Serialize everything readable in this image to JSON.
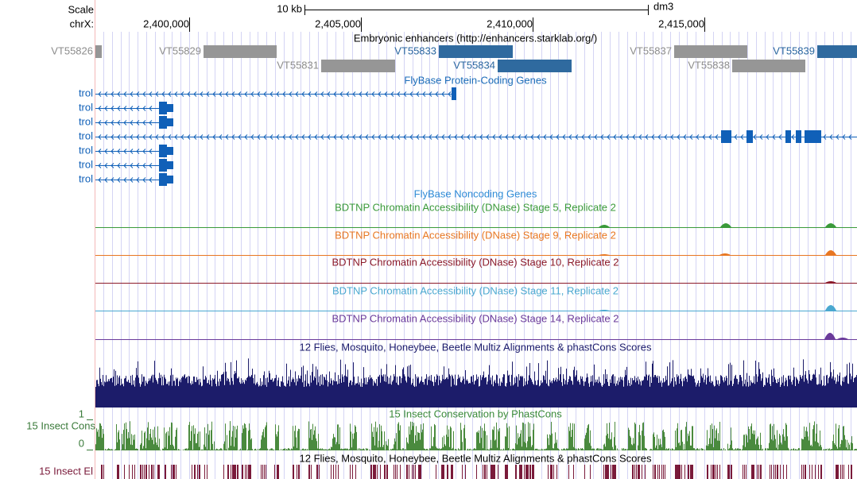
{
  "header": {
    "scale_label": "Scale",
    "chrom_label": "chrX:",
    "scale_bar_label": "10 kb",
    "assembly": "dm3",
    "positions": [
      "2,400,000",
      "2,405,000",
      "2,410,000",
      "2,415,000"
    ]
  },
  "enhancers": {
    "title": "Embryonic enhancers (http://enhancers.starklab.org/)",
    "features": [
      "VT55826",
      "VT55829",
      "VT55833",
      "VT55837",
      "VT55839",
      "VT55831",
      "VT55834",
      "VT55838"
    ]
  },
  "genes": {
    "title": "FlyBase Protein-Coding Genes",
    "labels": [
      "trol",
      "trol",
      "trol",
      "trol",
      "trol",
      "trol",
      "trol"
    ]
  },
  "noncoding": {
    "title": "FlyBase Noncoding Genes"
  },
  "dnase": [
    {
      "title": "BDTNP Chromatin Accessibility (DNase) Stage 5, Replicate 2"
    },
    {
      "title": "BDTNP Chromatin Accessibility (DNase) Stage 9, Replicate 2"
    },
    {
      "title": "BDTNP Chromatin Accessibility (DNase) Stage 10, Replicate 2"
    },
    {
      "title": "BDTNP Chromatin Accessibility (DNase) Stage 11, Replicate 2"
    },
    {
      "title": "BDTNP Chromatin Accessibility (DNase) Stage 14, Replicate 2"
    }
  ],
  "multiz": {
    "title": "12 Flies, Mosquito, Honeybee, Beetle Multiz Alignments & phastCons Scores"
  },
  "phastcons": {
    "title": "15 Insect Conservation by PhastCons",
    "side_label": "15 Insect Cons",
    "max_label": "1",
    "min_label": "0"
  },
  "elements": {
    "title": "12 Flies, Mosquito, Honeybee, Beetle Multiz Alignments & phastCons Scores",
    "side_label": "15 Insect El"
  }
}
